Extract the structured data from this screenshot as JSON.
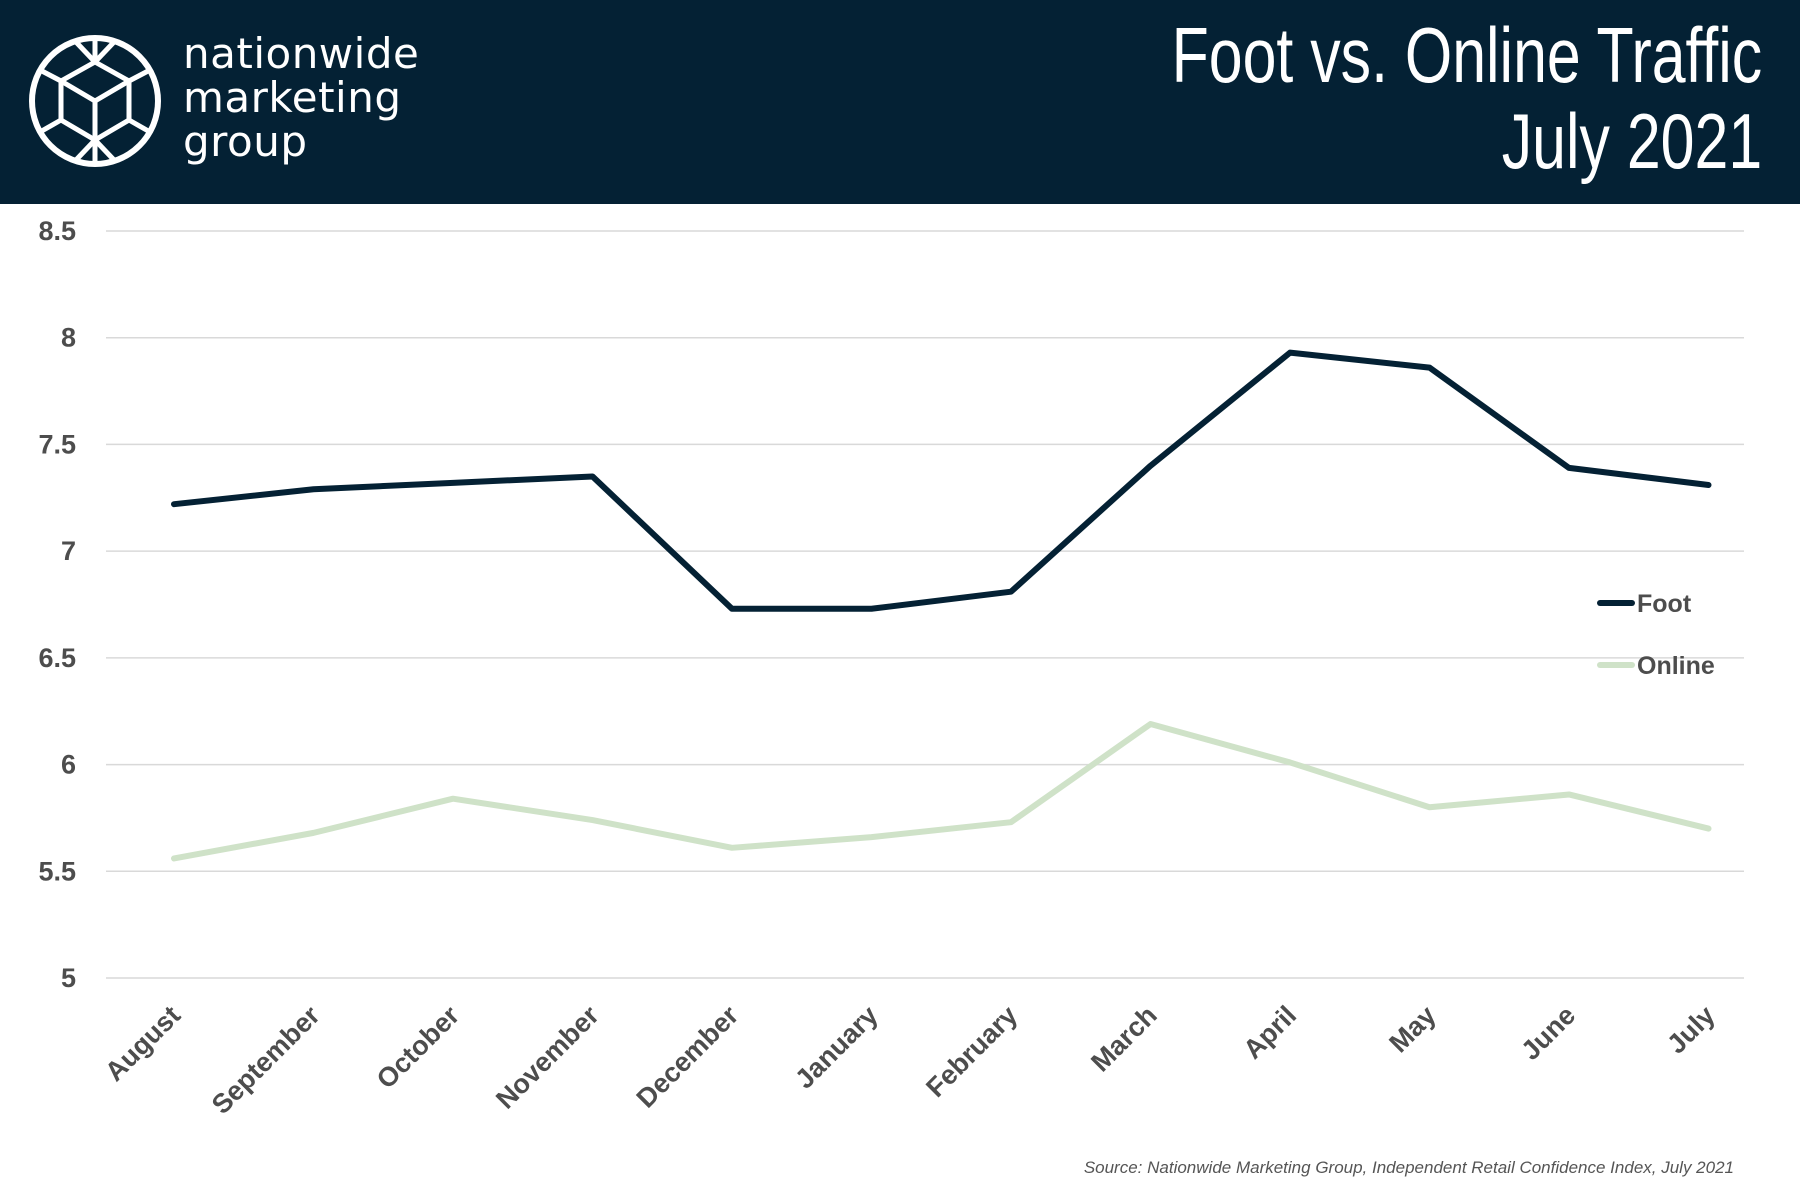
{
  "header": {
    "logo_lines": [
      "nationwide",
      "marketing",
      "group"
    ],
    "title_line1": "Foot vs. Online Traffic",
    "title_line2": "July 2021",
    "background": "#042134"
  },
  "chart_data": {
    "type": "line",
    "categories": [
      "August",
      "September",
      "October",
      "November",
      "December",
      "January",
      "February",
      "March",
      "April",
      "May",
      "June",
      "July"
    ],
    "series": [
      {
        "name": "Foot",
        "color": "#042134",
        "values": [
          7.22,
          7.29,
          7.32,
          7.35,
          6.73,
          6.73,
          6.81,
          7.4,
          7.93,
          7.86,
          7.39,
          7.31
        ]
      },
      {
        "name": "Online",
        "color": "#cfe2c8",
        "values": [
          5.56,
          5.68,
          5.84,
          5.74,
          5.61,
          5.66,
          5.73,
          6.19,
          6.01,
          5.8,
          5.86,
          5.7
        ]
      }
    ],
    "y_ticks": [
      "8.5",
      "8",
      "7.5",
      "7",
      "6.5",
      "6",
      "5.5",
      "5"
    ],
    "ylim": [
      5,
      8.5
    ],
    "grid": true,
    "legend_position": "right"
  },
  "source": "Source: Nationwide Marketing Group, Independent Retail Confidence Index, July 2021"
}
